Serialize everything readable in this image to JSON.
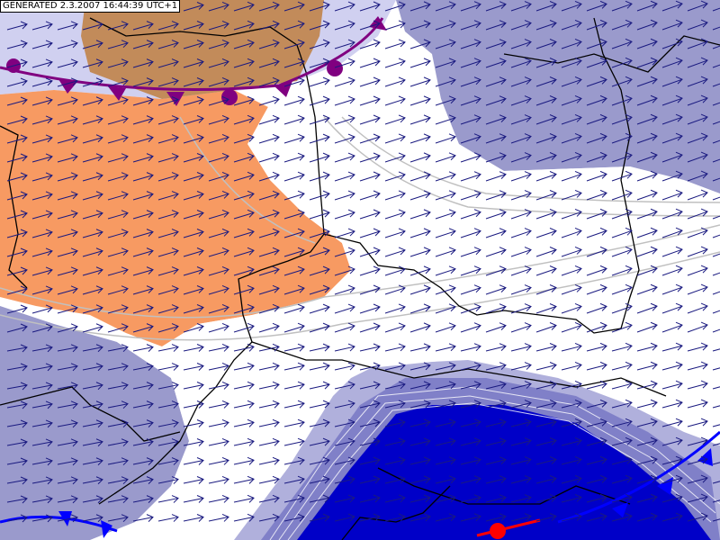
{
  "header": {
    "timestamp": "GENERATED 2.3.2007 16:44:39 UTC+1"
  }
}
